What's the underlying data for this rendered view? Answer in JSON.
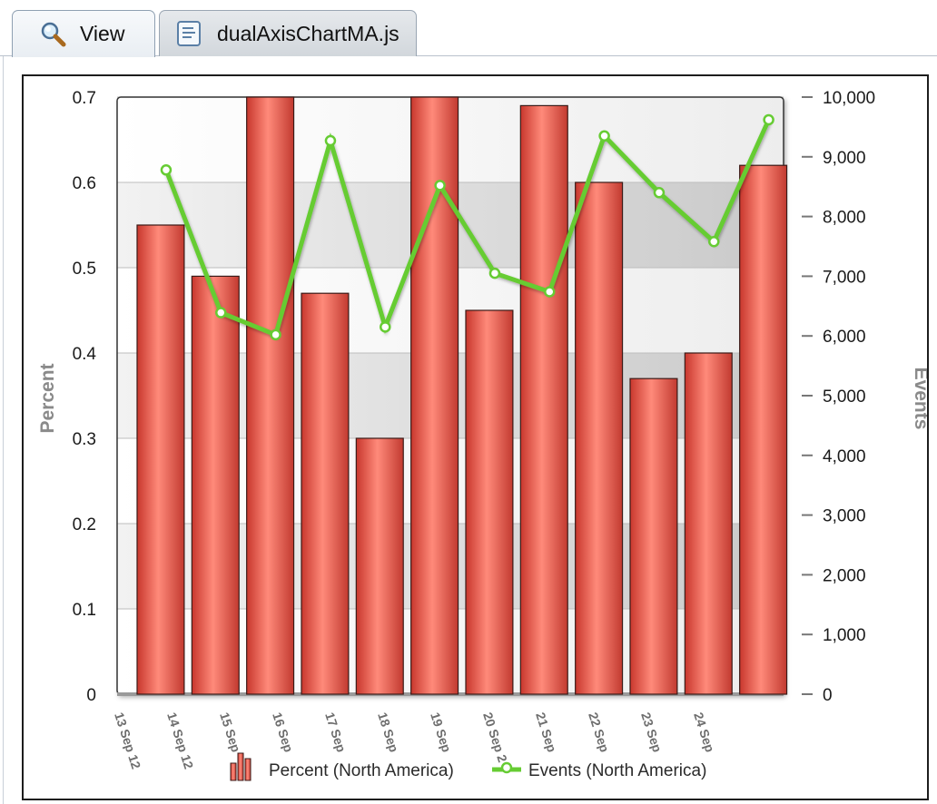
{
  "tabs": [
    {
      "label": "View",
      "icon": "magnifier-icon",
      "active": true
    },
    {
      "label": "dualAxisChartMA.js",
      "icon": "script-file-icon",
      "active": false
    }
  ],
  "chart_data": {
    "type": "bar",
    "categories": [
      "13 Sep 12",
      "14 Sep 12",
      "15 Sep 12",
      "16 Sep 12",
      "17 Sep 12",
      "18 Sep 12",
      "19 Sep 12",
      "20 Sep 12",
      "21 Sep 12",
      "22 Sep 12",
      "23 Sep 12",
      "24 Sep 12"
    ],
    "x_tick_labels": [
      "13 Sep 12",
      "14 Sep 12",
      "15 Sep",
      "16 Sep",
      "17 Sep",
      "18 Sep",
      "19 Sep",
      "20 Sep 2",
      "21 Sep",
      "22 Sep",
      "23 Sep",
      "24 Sep"
    ],
    "series": [
      {
        "name": "Percent (North America)",
        "type": "bar",
        "axis": "left",
        "color": "#e0534a",
        "values": [
          0.55,
          0.49,
          0.7,
          0.47,
          0.3,
          0.7,
          0.45,
          0.69,
          0.6,
          0.37,
          0.4,
          0.62
        ]
      },
      {
        "name": "Events (North America)",
        "type": "line",
        "axis": "right",
        "color": "#66cc33",
        "values": [
          8780,
          6390,
          6020,
          9270,
          6150,
          8520,
          7050,
          6740,
          9350,
          8400,
          7580,
          9620
        ]
      }
    ],
    "ylabel": "Percent",
    "ylabel_right": "Events",
    "ylim": [
      0,
      0.7
    ],
    "ylim_right": [
      0,
      10000
    ],
    "yticks": [
      "0",
      "0.1",
      "0.2",
      "0.3",
      "0.4",
      "0.5",
      "0.6",
      "0.7"
    ],
    "yticks_right": [
      "0",
      "1,000",
      "2,000",
      "3,000",
      "4,000",
      "5,000",
      "6,000",
      "7,000",
      "8,000",
      "9,000",
      "10,000"
    ],
    "grid": true,
    "legend": "bottom"
  }
}
